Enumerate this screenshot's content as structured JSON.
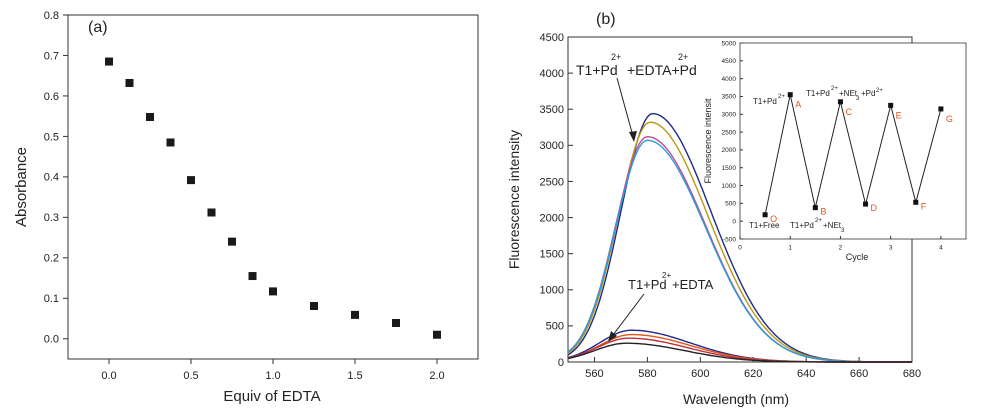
{
  "chart_data": [
    {
      "type": "scatter",
      "panel_label": "(a)",
      "xlabel": "Equiv of EDTA",
      "ylabel": "Absorbance",
      "xlim": [
        -0.25,
        2.25
      ],
      "ylim": [
        -0.05,
        0.8
      ],
      "xticks": [
        "0.0",
        "0.5",
        "1.0",
        "1.5",
        "2.0"
      ],
      "xtick_values": [
        0,
        0.5,
        1.0,
        1.5,
        2.0
      ],
      "yticks": [
        "0.0",
        "0.1",
        "0.2",
        "0.3",
        "0.4",
        "0.5",
        "0.6",
        "0.7",
        "0.8"
      ],
      "ytick_values": [
        0,
        0.1,
        0.2,
        0.3,
        0.4,
        0.5,
        0.6,
        0.7,
        0.8
      ],
      "points": [
        {
          "x": 0.0,
          "y": 0.685
        },
        {
          "x": 0.125,
          "y": 0.632
        },
        {
          "x": 0.25,
          "y": 0.548
        },
        {
          "x": 0.375,
          "y": 0.485
        },
        {
          "x": 0.5,
          "y": 0.392
        },
        {
          "x": 0.625,
          "y": 0.312
        },
        {
          "x": 0.75,
          "y": 0.24
        },
        {
          "x": 0.875,
          "y": 0.155
        },
        {
          "x": 1.0,
          "y": 0.117
        },
        {
          "x": 1.25,
          "y": 0.081
        },
        {
          "x": 1.5,
          "y": 0.059
        },
        {
          "x": 1.75,
          "y": 0.039
        },
        {
          "x": 2.0,
          "y": 0.01
        }
      ]
    },
    {
      "type": "line",
      "panel_label": "(b)",
      "xlabel": "Wavelength (nm)",
      "ylabel": "Fluorescence intensity",
      "xlim": [
        550,
        680
      ],
      "ylim": [
        0,
        4500
      ],
      "xticks": [
        "560",
        "580",
        "600",
        "620",
        "640",
        "660",
        "680"
      ],
      "xtick_values": [
        560,
        580,
        600,
        620,
        640,
        660,
        680
      ],
      "yticks": [
        "0",
        "500",
        "1000",
        "1500",
        "2000",
        "2500",
        "3000",
        "3500",
        "4000",
        "4500"
      ],
      "ytick_values": [
        0,
        500,
        1000,
        1500,
        2000,
        2500,
        3000,
        3500,
        4000,
        4500
      ],
      "annotations": {
        "upper": {
          "main": "T1+Pd",
          "sup1": "2+",
          "mid": "+EDTA+Pd",
          "sup2": "2+"
        },
        "lower": {
          "main": "T1+Pd",
          "sup1": "2+",
          "mid": "+EDTA"
        }
      },
      "series": [
        {
          "name": "T1+Pd2+ +EDTA+Pd2+ (1)",
          "color": "#1f2a8a",
          "peak_x": 582,
          "peak_y": 3440
        },
        {
          "name": "T1+Pd2+ +EDTA+Pd2+ (2)",
          "color": "#b89a10",
          "peak_x": 581,
          "peak_y": 3320
        },
        {
          "name": "T1+Pd2+ +EDTA+Pd2+ (3)",
          "color": "#c04a9a",
          "peak_x": 580,
          "peak_y": 3120
        },
        {
          "name": "T1+Pd2+ +EDTA+Pd2+ (4)",
          "color": "#2a9ed8",
          "peak_x": 580,
          "peak_y": 3070
        },
        {
          "name": "T1+Pd2+ +EDTA (1)",
          "color": "#1f2a8a",
          "peak_x": 574,
          "peak_y": 440
        },
        {
          "name": "T1+Pd2+ +EDTA (2)",
          "color": "#e0561a",
          "peak_x": 574,
          "peak_y": 380
        },
        {
          "name": "T1+Pd2+ +EDTA (3)",
          "color": "#c0303a",
          "peak_x": 573,
          "peak_y": 330
        },
        {
          "name": "T1+Pd2+ +EDTA (4)",
          "color": "#222222",
          "peak_x": 572,
          "peak_y": 260
        }
      ]
    },
    {
      "type": "line",
      "panel_label": "inset",
      "xlabel": "Cycle",
      "ylabel": "Fluorescence intensit",
      "xlim": [
        0,
        4.5
      ],
      "ylim": [
        -500,
        5000
      ],
      "xticks": [
        "0",
        "1",
        "2",
        "3",
        "4"
      ],
      "xtick_values": [
        0,
        1,
        2,
        3,
        4
      ],
      "yticks": [
        "-500",
        "0",
        "500",
        "1000",
        "1500",
        "2000",
        "2500",
        "3000",
        "3500",
        "4000",
        "4500",
        "5000"
      ],
      "ytick_values": [
        -500,
        0,
        500,
        1000,
        1500,
        2000,
        2500,
        3000,
        3500,
        4000,
        4500,
        5000
      ],
      "points": [
        {
          "x": 0.5,
          "y": 180,
          "label": "O"
        },
        {
          "x": 1.0,
          "y": 3550,
          "label": "A"
        },
        {
          "x": 1.5,
          "y": 380,
          "label": "B"
        },
        {
          "x": 2.0,
          "y": 3350,
          "label": "C"
        },
        {
          "x": 2.5,
          "y": 480,
          "label": "D"
        },
        {
          "x": 3.0,
          "y": 3250,
          "label": "E"
        },
        {
          "x": 3.5,
          "y": 530,
          "label": "F"
        },
        {
          "x": 4.0,
          "y": 3150,
          "label": "G"
        }
      ],
      "annotations": {
        "t1pd": {
          "main": "T1+Pd",
          "sup": "2+"
        },
        "net": {
          "main": "T1+Pd",
          "sup1": "2+",
          "mid": "+NEt",
          "sub": "3",
          "mid2": "+Pd",
          "sup2": "2+"
        },
        "free": "T1+Free",
        "bottom": {
          "main": "T1+Pd",
          "sup": "2+",
          "mid": "+NEt",
          "sub": "3"
        }
      }
    }
  ]
}
